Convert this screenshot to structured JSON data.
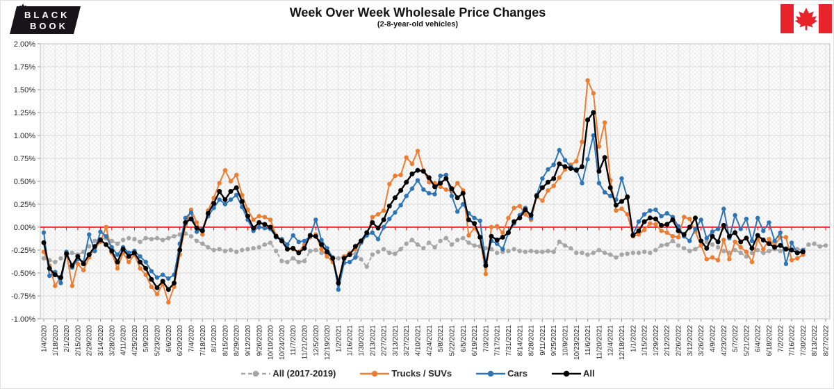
{
  "header": {
    "title": "Week Over Week Wholesale Price Changes",
    "subtitle": "(2-8-year-old vehicles)"
  },
  "logo": {
    "word1": "BLACK",
    "word2": "BOOK"
  },
  "chart_data": {
    "type": "line",
    "title": "Week Over Week Wholesale Price Changes",
    "subtitle": "(2-8-year-old vehicles)",
    "grid": true,
    "legend_position": "bottom",
    "zero_line_color": "#FF0000",
    "y_axis": {
      "min": -1.0,
      "max": 2.0,
      "step": 0.25,
      "tick_labels": [
        "2.00%",
        "1.75%",
        "1.50%",
        "1.25%",
        "1.00%",
        "0.75%",
        "0.50%",
        "0.25%",
        "0.00%",
        "-0.25%",
        "-0.50%",
        "-0.75%",
        "-1.00%"
      ]
    },
    "x_axis": {
      "n_points": 139,
      "tick_every_n_points": 2,
      "tick_labels": [
        "1/4/2020",
        "1/18/2020",
        "2/1/2020",
        "2/15/2020",
        "2/29/2020",
        "3/14/2020",
        "3/28/2020",
        "4/11/2020",
        "4/25/2020",
        "5/9/2020",
        "5/23/2020",
        "6/6/2020",
        "6/20/2020",
        "7/4/2020",
        "7/18/2020",
        "8/1/2020",
        "8/15/2020",
        "8/29/2020",
        "9/12/2020",
        "9/26/2020",
        "10/10/2020",
        "10/24/2020",
        "11/7/2020",
        "11/21/2020",
        "12/5/2020",
        "12/19/2020",
        "1/2/2021",
        "1/16/2021",
        "1/30/2021",
        "2/13/2021",
        "2/27/2021",
        "3/13/2021",
        "3/27/2021",
        "4/10/2021",
        "4/24/2021",
        "5/8/2021",
        "5/22/2021",
        "6/5/2021",
        "6/19/2021",
        "7/3/2021",
        "7/17/2021",
        "7/31/2021",
        "8/14/2021",
        "8/28/2021",
        "9/11/2021",
        "9/25/2021",
        "10/9/2021",
        "10/23/2021",
        "11/6/2021",
        "11/20/2021",
        "12/4/2021",
        "12/18/2021",
        "1/1/2022",
        "1/15/2022",
        "1/29/2022",
        "2/12/2022",
        "2/26/2022",
        "3/12/2022",
        "3/26/2022",
        "4/9/2022",
        "4/23/2022",
        "5/7/2022",
        "5/21/2022",
        "6/4/2022",
        "6/18/2022",
        "7/2/2022",
        "7/16/2022",
        "7/30/2022",
        "8/13/2022",
        "8/27/2022"
      ]
    },
    "series": [
      {
        "name": "All (2017-2019)",
        "color": "#A6A6A6",
        "style": "dashed",
        "values": [
          -0.34,
          -0.36,
          -0.38,
          -0.34,
          -0.31,
          -0.28,
          -0.3,
          -0.27,
          -0.21,
          -0.15,
          -0.13,
          -0.12,
          -0.15,
          -0.18,
          -0.14,
          -0.12,
          -0.13,
          -0.16,
          -0.12,
          -0.13,
          -0.12,
          -0.14,
          -0.12,
          -0.1,
          -0.08,
          -0.07,
          -0.1,
          -0.15,
          -0.18,
          -0.22,
          -0.25,
          -0.24,
          -0.26,
          -0.25,
          -0.27,
          -0.25,
          -0.24,
          -0.23,
          -0.22,
          -0.19,
          -0.17,
          -0.26,
          -0.37,
          -0.38,
          -0.34,
          -0.38,
          -0.37,
          -0.26,
          -0.25,
          -0.28,
          -0.32,
          -0.34,
          -0.34,
          -0.32,
          -0.3,
          -0.29,
          -0.35,
          -0.43,
          -0.3,
          -0.27,
          -0.24,
          -0.28,
          -0.29,
          -0.24,
          -0.18,
          -0.14,
          -0.19,
          -0.23,
          -0.17,
          -0.22,
          -0.15,
          -0.12,
          -0.19,
          -0.14,
          -0.12,
          -0.17,
          -0.2,
          -0.21,
          -0.23,
          -0.24,
          -0.28,
          -0.27,
          -0.26,
          -0.24,
          -0.26,
          -0.27,
          -0.26,
          -0.27,
          -0.27,
          -0.26,
          -0.27,
          -0.16,
          -0.2,
          -0.23,
          -0.28,
          -0.28,
          -0.3,
          -0.28,
          -0.25,
          -0.28,
          -0.3,
          -0.33,
          -0.3,
          -0.29,
          -0.28,
          -0.28,
          -0.27,
          -0.28,
          -0.25,
          -0.2,
          -0.19,
          -0.15,
          -0.2,
          -0.23,
          -0.26,
          -0.24,
          -0.2,
          -0.16,
          -0.19,
          -0.22,
          -0.26,
          -0.28,
          -0.25,
          -0.28,
          -0.32,
          -0.28,
          -0.25,
          -0.28,
          -0.26,
          -0.24,
          -0.26,
          -0.23,
          -0.24,
          -0.24,
          -0.25,
          -0.19,
          -0.18,
          -0.21,
          -0.2
        ]
      },
      {
        "name": "Trucks / SUVs",
        "color": "#ED7D31",
        "style": "solid",
        "values": [
          -0.27,
          -0.42,
          -0.64,
          -0.54,
          -0.28,
          -0.64,
          -0.4,
          -0.47,
          -0.33,
          -0.23,
          -0.16,
          0.0,
          -0.28,
          -0.45,
          -0.28,
          -0.38,
          -0.3,
          -0.45,
          -0.52,
          -0.65,
          -0.73,
          -0.62,
          -0.82,
          -0.65,
          -0.3,
          0.02,
          0.19,
          0.05,
          -0.08,
          0.18,
          0.32,
          0.48,
          0.62,
          0.5,
          0.57,
          0.35,
          0.19,
          0.08,
          0.12,
          0.11,
          0.08,
          -0.09,
          -0.14,
          -0.23,
          -0.24,
          -0.27,
          -0.19,
          -0.11,
          -0.08,
          -0.24,
          -0.32,
          -0.38,
          -0.59,
          -0.32,
          -0.28,
          -0.24,
          -0.16,
          -0.08,
          0.11,
          0.14,
          0.18,
          0.47,
          0.56,
          0.57,
          0.76,
          0.69,
          0.83,
          0.62,
          0.49,
          0.48,
          0.44,
          0.41,
          0.39,
          0.48,
          0.4,
          -0.09,
          -0.01,
          -0.11,
          -0.51,
          0.0,
          0.01,
          -0.06,
          0.1,
          0.21,
          0.23,
          0.14,
          0.08,
          0.33,
          0.29,
          0.4,
          0.45,
          0.54,
          0.63,
          0.68,
          0.72,
          0.93,
          1.6,
          1.46,
          0.88,
          1.14,
          0.51,
          0.18,
          0.2,
          0.14,
          -0.1,
          -0.08,
          -0.03,
          0.04,
          0.03,
          -0.04,
          -0.06,
          -0.1,
          -0.11,
          0.11,
          0.09,
          -0.05,
          -0.2,
          -0.35,
          -0.33,
          -0.36,
          -0.14,
          -0.35,
          -0.16,
          -0.22,
          -0.27,
          -0.38,
          -0.13,
          -0.24,
          -0.13,
          -0.2,
          -0.11,
          -0.11,
          -0.36,
          -0.34,
          -0.3,
          null,
          null,
          null,
          null
        ]
      },
      {
        "name": "Cars",
        "color": "#2E75B6",
        "style": "solid",
        "values": [
          -0.06,
          -0.53,
          -0.49,
          -0.61,
          -0.27,
          -0.44,
          -0.35,
          -0.38,
          -0.08,
          -0.26,
          -0.05,
          -0.1,
          -0.22,
          -0.3,
          -0.22,
          -0.28,
          -0.26,
          -0.32,
          -0.38,
          -0.48,
          -0.55,
          -0.52,
          -0.56,
          -0.52,
          -0.18,
          0.1,
          0.16,
          -0.05,
          -0.02,
          0.12,
          0.21,
          0.3,
          0.25,
          0.3,
          0.35,
          0.22,
          0.08,
          -0.04,
          0.0,
          -0.01,
          -0.02,
          -0.11,
          -0.13,
          -0.19,
          -0.09,
          -0.16,
          -0.15,
          -0.1,
          0.08,
          -0.14,
          -0.23,
          -0.33,
          -0.68,
          -0.39,
          -0.38,
          -0.33,
          -0.17,
          -0.09,
          -0.06,
          -0.13,
          0.0,
          0.09,
          0.16,
          0.24,
          0.34,
          0.42,
          0.51,
          0.41,
          0.37,
          0.36,
          0.56,
          0.57,
          0.34,
          0.17,
          0.25,
          0.15,
          0.1,
          0.07,
          -0.39,
          -0.15,
          -0.18,
          -0.24,
          -0.06,
          0.04,
          0.13,
          0.21,
          0.1,
          0.35,
          0.53,
          0.63,
          0.68,
          0.84,
          0.73,
          0.66,
          0.63,
          0.48,
          0.74,
          1.0,
          0.48,
          0.38,
          0.34,
          0.3,
          0.53,
          0.32,
          -0.08,
          0.06,
          0.14,
          0.18,
          0.19,
          0.12,
          0.15,
          0.11,
          0.01,
          -0.1,
          -0.15,
          -0.02,
          0.08,
          -0.12,
          -0.05,
          -0.02,
          0.2,
          -0.12,
          0.13,
          -0.02,
          0.09,
          -0.15,
          0.1,
          -0.04,
          0.05,
          -0.15,
          -0.06,
          -0.4,
          -0.17,
          -0.28,
          -0.25,
          null,
          null,
          null,
          null
        ]
      },
      {
        "name": "All",
        "color": "#000000",
        "style": "solid",
        "values": [
          -0.17,
          -0.45,
          -0.52,
          -0.55,
          -0.29,
          -0.42,
          -0.32,
          -0.4,
          -0.3,
          -0.21,
          -0.14,
          -0.19,
          -0.26,
          -0.38,
          -0.24,
          -0.32,
          -0.28,
          -0.38,
          -0.45,
          -0.57,
          -0.66,
          -0.59,
          -0.68,
          -0.61,
          -0.25,
          0.05,
          0.09,
          -0.01,
          -0.04,
          0.15,
          0.26,
          0.39,
          0.3,
          0.39,
          0.43,
          0.28,
          0.12,
          -0.01,
          0.05,
          0.03,
          0.0,
          -0.1,
          -0.15,
          -0.24,
          -0.23,
          -0.28,
          -0.23,
          -0.09,
          -0.1,
          -0.19,
          -0.27,
          -0.34,
          -0.61,
          -0.34,
          -0.3,
          -0.21,
          -0.15,
          -0.06,
          0.05,
          -0.01,
          0.08,
          0.23,
          0.32,
          0.4,
          0.49,
          0.58,
          0.62,
          0.61,
          0.54,
          0.44,
          0.48,
          0.53,
          0.42,
          0.32,
          0.37,
          0.08,
          0.04,
          -0.11,
          -0.42,
          -0.1,
          -0.14,
          -0.11,
          -0.06,
          0.06,
          0.1,
          0.19,
          0.13,
          0.34,
          0.43,
          0.49,
          0.53,
          0.69,
          0.66,
          0.64,
          0.62,
          0.66,
          1.17,
          1.25,
          0.61,
          0.76,
          0.43,
          0.24,
          0.28,
          0.33,
          -0.09,
          -0.04,
          0.06,
          0.1,
          0.09,
          0.02,
          0.03,
          0.08,
          -0.04,
          -0.08,
          0.0,
          0.1,
          -0.15,
          -0.23,
          -0.1,
          -0.16,
          0.02,
          -0.1,
          -0.06,
          -0.16,
          -0.12,
          -0.23,
          -0.09,
          -0.14,
          -0.18,
          -0.22,
          -0.2,
          -0.24,
          -0.25,
          -0.28,
          -0.27,
          null,
          null,
          null,
          null
        ]
      }
    ]
  }
}
